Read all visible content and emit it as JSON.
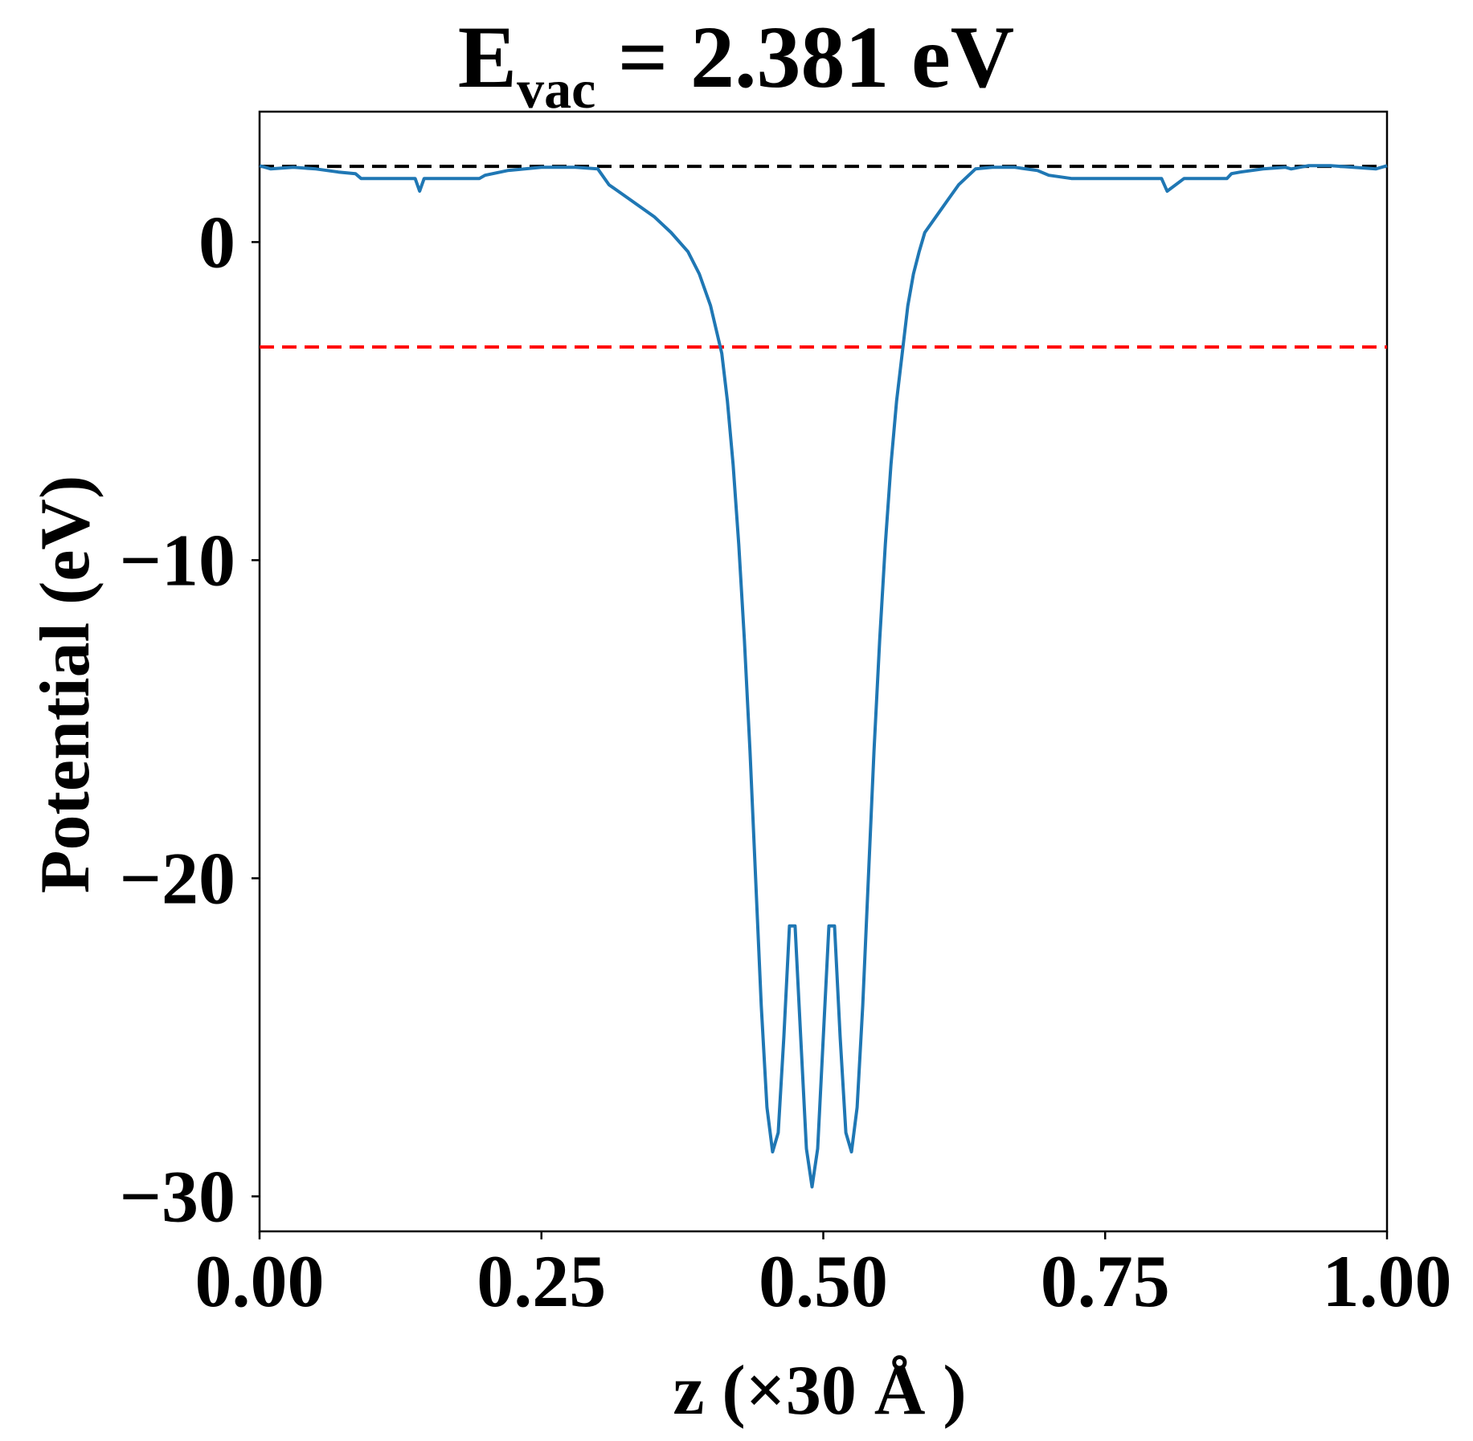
{
  "chart_data": {
    "type": "line",
    "title": {
      "main": "E",
      "subscript": "vac",
      "rest": " = 2.381 eV"
    },
    "xlabel": "z (×30 Å )",
    "ylabel": "Potential (eV)",
    "xlim": [
      0,
      1
    ],
    "ylim": [
      -31.1,
      4.1
    ],
    "xticks": [
      {
        "value": 0.0,
        "label": "0.00"
      },
      {
        "value": 0.25,
        "label": "0.25"
      },
      {
        "value": 0.5,
        "label": "0.50"
      },
      {
        "value": 0.75,
        "label": "0.75"
      },
      {
        "value": 1.0,
        "label": "1.00"
      }
    ],
    "yticks": [
      {
        "value": 0,
        "label": "0"
      },
      {
        "value": -10,
        "label": "−10"
      },
      {
        "value": -20,
        "label": "−20"
      },
      {
        "value": -30,
        "label": "−30"
      }
    ],
    "grid": false,
    "reference_lines": [
      {
        "y": 2.381,
        "color": "#000000",
        "style": "dashed"
      },
      {
        "y": -3.3,
        "color": "#ff0000",
        "style": "dashed"
      }
    ],
    "series": [
      {
        "color": "#1f77b4",
        "x": [
          0.0,
          0.01,
          0.03,
          0.05,
          0.07,
          0.085,
          0.09,
          0.11,
          0.13,
          0.138,
          0.142,
          0.146,
          0.155,
          0.18,
          0.195,
          0.2,
          0.22,
          0.25,
          0.28,
          0.3,
          0.31,
          0.33,
          0.35,
          0.365,
          0.38,
          0.39,
          0.4,
          0.41,
          0.415,
          0.42,
          0.425,
          0.43,
          0.435,
          0.44,
          0.445,
          0.45,
          0.455,
          0.46,
          0.465,
          0.47,
          0.475,
          0.48,
          0.485,
          0.49,
          0.495,
          0.5,
          0.505,
          0.51,
          0.515,
          0.52,
          0.525,
          0.53,
          0.535,
          0.54,
          0.545,
          0.55,
          0.555,
          0.56,
          0.565,
          0.57,
          0.575,
          0.58,
          0.585,
          0.59,
          0.6,
          0.61,
          0.62,
          0.635,
          0.65,
          0.67,
          0.69,
          0.7,
          0.72,
          0.75,
          0.78,
          0.8,
          0.805,
          0.82,
          0.845,
          0.854,
          0.858,
          0.862,
          0.87,
          0.89,
          0.91,
          0.915,
          0.93,
          0.95,
          0.97,
          0.99,
          1.0
        ],
        "y": [
          2.4,
          2.3,
          2.35,
          2.3,
          2.2,
          2.15,
          2.0,
          2.0,
          2.0,
          2.0,
          1.6,
          2.0,
          2.0,
          2.0,
          2.0,
          2.1,
          2.25,
          2.35,
          2.35,
          2.3,
          1.8,
          1.3,
          0.8,
          0.3,
          -0.3,
          -1.0,
          -2.0,
          -3.5,
          -5.0,
          -7.0,
          -9.5,
          -12.5,
          -16.0,
          -20.0,
          -24.0,
          -27.2,
          -28.6,
          -28.0,
          -25.0,
          -21.5,
          -21.5,
          -25.0,
          -28.5,
          -29.7,
          -28.5,
          -25.0,
          -21.5,
          -21.5,
          -25.0,
          -28.0,
          -28.6,
          -27.2,
          -24.0,
          -20.0,
          -16.0,
          -12.5,
          -9.5,
          -7.0,
          -5.0,
          -3.5,
          -2.0,
          -1.0,
          -0.3,
          0.3,
          0.8,
          1.3,
          1.8,
          2.3,
          2.35,
          2.35,
          2.25,
          2.1,
          2.0,
          2.0,
          2.0,
          2.0,
          1.6,
          2.0,
          2.0,
          2.0,
          2.0,
          2.15,
          2.2,
          2.3,
          2.35,
          2.3,
          2.4,
          2.4,
          2.35,
          2.3,
          2.4
        ]
      }
    ]
  }
}
